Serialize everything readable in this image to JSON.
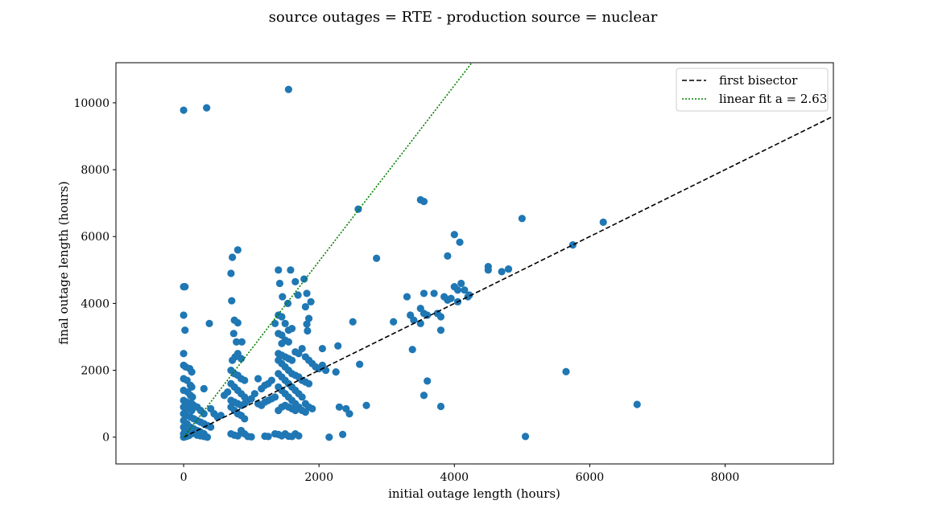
{
  "chart_data": {
    "type": "scatter",
    "title": "source outages = RTE - production source = nuclear",
    "xlabel": "initial outage length (hours)",
    "ylabel": "final outage length (hours)",
    "xlim": [
      -1000,
      9600
    ],
    "ylim": [
      -800,
      11200
    ],
    "xticks": [
      0,
      2000,
      4000,
      6000,
      8000
    ],
    "yticks": [
      0,
      2000,
      4000,
      6000,
      8000,
      10000
    ],
    "xtick_labels": [
      "0",
      "2000",
      "4000",
      "6000",
      "8000"
    ],
    "ytick_labels": [
      "0",
      "2000",
      "4000",
      "6000",
      "8000",
      "10000"
    ],
    "grid": false,
    "legend_position": "top-right",
    "point_color": "#1f77b4",
    "series": [
      {
        "name": "first bisector",
        "kind": "line",
        "style": "dashed",
        "color": "#000000",
        "slope": 1
      },
      {
        "name": "linear fit a = 2.63",
        "kind": "line",
        "style": "dotted",
        "color": "#008000",
        "slope": 2.63
      }
    ],
    "points": [
      [
        0,
        9780
      ],
      [
        340,
        9850
      ],
      [
        1550,
        10400
      ],
      [
        0,
        4500
      ],
      [
        20,
        4500
      ],
      [
        0,
        3650
      ],
      [
        20,
        3200
      ],
      [
        0,
        2500
      ],
      [
        0,
        2150
      ],
      [
        30,
        2100
      ],
      [
        90,
        2050
      ],
      [
        120,
        1950
      ],
      [
        0,
        1750
      ],
      [
        50,
        1700
      ],
      [
        100,
        1550
      ],
      [
        120,
        1500
      ],
      [
        0,
        1400
      ],
      [
        60,
        1350
      ],
      [
        100,
        1250
      ],
      [
        130,
        1200
      ],
      [
        0,
        1100
      ],
      [
        50,
        1050
      ],
      [
        120,
        1000
      ],
      [
        150,
        950
      ],
      [
        0,
        900
      ],
      [
        60,
        850
      ],
      [
        120,
        800
      ],
      [
        200,
        900
      ],
      [
        250,
        800
      ],
      [
        300,
        700
      ],
      [
        0,
        700
      ],
      [
        40,
        650
      ],
      [
        100,
        600
      ],
      [
        150,
        550
      ],
      [
        200,
        500
      ],
      [
        250,
        450
      ],
      [
        300,
        400
      ],
      [
        350,
        350
      ],
      [
        400,
        300
      ],
      [
        0,
        500
      ],
      [
        50,
        400
      ],
      [
        100,
        300
      ],
      [
        150,
        250
      ],
      [
        200,
        200
      ],
      [
        250,
        150
      ],
      [
        300,
        100
      ],
      [
        0,
        300
      ],
      [
        20,
        200
      ],
      [
        40,
        150
      ],
      [
        60,
        100
      ],
      [
        80,
        50
      ],
      [
        0,
        100
      ],
      [
        10,
        50
      ],
      [
        5,
        20
      ],
      [
        0,
        0
      ],
      [
        20,
        10
      ],
      [
        50,
        30
      ],
      [
        100,
        80
      ],
      [
        150,
        120
      ],
      [
        200,
        60
      ],
      [
        250,
        40
      ],
      [
        300,
        20
      ],
      [
        350,
        0
      ],
      [
        300,
        1450
      ],
      [
        380,
        3400
      ],
      [
        400,
        850
      ],
      [
        450,
        700
      ],
      [
        500,
        600
      ],
      [
        550,
        650
      ],
      [
        600,
        1250
      ],
      [
        650,
        1350
      ],
      [
        720,
        5380
      ],
      [
        800,
        5600
      ],
      [
        700,
        4900
      ],
      [
        710,
        4080
      ],
      [
        750,
        3500
      ],
      [
        800,
        3420
      ],
      [
        860,
        2850
      ],
      [
        780,
        2850
      ],
      [
        740,
        3100
      ],
      [
        720,
        2300
      ],
      [
        760,
        2400
      ],
      [
        800,
        2500
      ],
      [
        850,
        2350
      ],
      [
        700,
        2000
      ],
      [
        750,
        1900
      ],
      [
        800,
        1850
      ],
      [
        850,
        1750
      ],
      [
        900,
        1700
      ],
      [
        700,
        1600
      ],
      [
        750,
        1500
      ],
      [
        800,
        1400
      ],
      [
        850,
        1300
      ],
      [
        900,
        1200
      ],
      [
        700,
        1100
      ],
      [
        750,
        1050
      ],
      [
        800,
        1000
      ],
      [
        850,
        950
      ],
      [
        900,
        1000
      ],
      [
        950,
        1100
      ],
      [
        1000,
        1150
      ],
      [
        1050,
        1300
      ],
      [
        700,
        900
      ],
      [
        750,
        800
      ],
      [
        800,
        700
      ],
      [
        850,
        650
      ],
      [
        900,
        550
      ],
      [
        700,
        100
      ],
      [
        750,
        60
      ],
      [
        800,
        40
      ],
      [
        850,
        200
      ],
      [
        900,
        100
      ],
      [
        950,
        20
      ],
      [
        1000,
        10
      ],
      [
        1100,
        1750
      ],
      [
        1150,
        1450
      ],
      [
        1200,
        1550
      ],
      [
        1250,
        1600
      ],
      [
        1300,
        1700
      ],
      [
        1100,
        1000
      ],
      [
        1150,
        950
      ],
      [
        1200,
        1050
      ],
      [
        1250,
        1100
      ],
      [
        1300,
        1150
      ],
      [
        1350,
        1200
      ],
      [
        1200,
        30
      ],
      [
        1250,
        20
      ],
      [
        1350,
        100
      ],
      [
        1400,
        80
      ],
      [
        1450,
        40
      ],
      [
        1500,
        100
      ],
      [
        1550,
        30
      ],
      [
        1600,
        20
      ],
      [
        1650,
        100
      ],
      [
        1700,
        40
      ],
      [
        1400,
        5000
      ],
      [
        1580,
        5000
      ],
      [
        1420,
        4600
      ],
      [
        1650,
        4650
      ],
      [
        1780,
        4730
      ],
      [
        1460,
        4200
      ],
      [
        1540,
        4000
      ],
      [
        1690,
        4250
      ],
      [
        1820,
        4300
      ],
      [
        1800,
        3900
      ],
      [
        1880,
        4050
      ],
      [
        1400,
        3650
      ],
      [
        1450,
        3600
      ],
      [
        1500,
        3400
      ],
      [
        1550,
        3200
      ],
      [
        1600,
        3250
      ],
      [
        1400,
        3100
      ],
      [
        1450,
        3050
      ],
      [
        1500,
        2900
      ],
      [
        1550,
        2850
      ],
      [
        1350,
        3400
      ],
      [
        1850,
        3550
      ],
      [
        1820,
        3380
      ],
      [
        1830,
        3180
      ],
      [
        1450,
        2800
      ],
      [
        1400,
        2500
      ],
      [
        1450,
        2450
      ],
      [
        1500,
        2400
      ],
      [
        1550,
        2350
      ],
      [
        1600,
        2300
      ],
      [
        1650,
        2550
      ],
      [
        1700,
        2500
      ],
      [
        1750,
        2650
      ],
      [
        1800,
        2400
      ],
      [
        1850,
        2300
      ],
      [
        1900,
        2200
      ],
      [
        1950,
        2100
      ],
      [
        2000,
        2050
      ],
      [
        2050,
        2150
      ],
      [
        2100,
        2000
      ],
      [
        2050,
        2650
      ],
      [
        2250,
        1950
      ],
      [
        1400,
        2300
      ],
      [
        1450,
        2200
      ],
      [
        1500,
        2100
      ],
      [
        1550,
        2000
      ],
      [
        1600,
        1900
      ],
      [
        1650,
        1850
      ],
      [
        1700,
        1800
      ],
      [
        1750,
        1700
      ],
      [
        1800,
        1650
      ],
      [
        1850,
        1600
      ],
      [
        1400,
        1900
      ],
      [
        1450,
        1800
      ],
      [
        1500,
        1700
      ],
      [
        1550,
        1600
      ],
      [
        1600,
        1500
      ],
      [
        1650,
        1400
      ],
      [
        1700,
        1300
      ],
      [
        1750,
        1200
      ],
      [
        1800,
        1000
      ],
      [
        1850,
        900
      ],
      [
        1900,
        850
      ],
      [
        1400,
        1500
      ],
      [
        1450,
        1400
      ],
      [
        1500,
        1300
      ],
      [
        1550,
        1200
      ],
      [
        1600,
        1100
      ],
      [
        1650,
        1000
      ],
      [
        1700,
        900
      ],
      [
        1750,
        800
      ],
      [
        1800,
        750
      ],
      [
        1400,
        800
      ],
      [
        1450,
        900
      ],
      [
        1500,
        950
      ],
      [
        1550,
        900
      ],
      [
        1600,
        850
      ],
      [
        1650,
        800
      ],
      [
        2150,
        0
      ],
      [
        2300,
        900
      ],
      [
        2350,
        80
      ],
      [
        2400,
        850
      ],
      [
        2450,
        700
      ],
      [
        2280,
        2730
      ],
      [
        2500,
        3450
      ],
      [
        2600,
        2180
      ],
      [
        2580,
        6820
      ],
      [
        2700,
        950
      ],
      [
        2850,
        5350
      ],
      [
        3100,
        3450
      ],
      [
        3300,
        4200
      ],
      [
        3350,
        3650
      ],
      [
        3400,
        3500
      ],
      [
        3380,
        2620
      ],
      [
        3500,
        3850
      ],
      [
        3500,
        3400
      ],
      [
        3550,
        4300
      ],
      [
        3550,
        3700
      ],
      [
        3600,
        3650
      ],
      [
        3700,
        4300
      ],
      [
        3750,
        3700
      ],
      [
        3500,
        7100
      ],
      [
        3550,
        7050
      ],
      [
        3550,
        1250
      ],
      [
        3600,
        1680
      ],
      [
        3800,
        920
      ],
      [
        3800,
        3200
      ],
      [
        3850,
        4200
      ],
      [
        3800,
        3600
      ],
      [
        3900,
        4100
      ],
      [
        3900,
        5420
      ],
      [
        3950,
        4150
      ],
      [
        4000,
        6060
      ],
      [
        4000,
        4500
      ],
      [
        4050,
        4400
      ],
      [
        4100,
        4600
      ],
      [
        4050,
        4050
      ],
      [
        4080,
        5830
      ],
      [
        4150,
        4400
      ],
      [
        4200,
        4200
      ],
      [
        4220,
        4250
      ],
      [
        4500,
        5100
      ],
      [
        4500,
        5000
      ],
      [
        4700,
        4950
      ],
      [
        4800,
        5030
      ],
      [
        5000,
        6540
      ],
      [
        5050,
        20
      ],
      [
        5650,
        1960
      ],
      [
        5750,
        5750
      ],
      [
        6200,
        6430
      ],
      [
        6700,
        980
      ]
    ]
  }
}
